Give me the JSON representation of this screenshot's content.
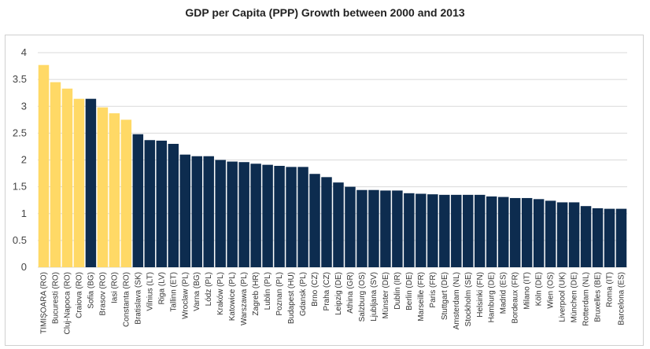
{
  "chart_data": {
    "type": "bar",
    "title": "GDP per Capita (PPP) Growth between 2000 and 2013",
    "xlabel": "",
    "ylabel": "",
    "ylim": [
      0,
      4
    ],
    "yticks": [
      0,
      0.5,
      1,
      1.5,
      2,
      2.5,
      3,
      3.5,
      4
    ],
    "grid": true,
    "colors": {
      "highlight": "#FFD966",
      "default": "#0D2C4F"
    },
    "categories": [
      "TIMIȘOARA (RO)",
      "Bucuresti (RO)",
      "Cluj-Napoca (RO)",
      "Craiova (RO)",
      "Sofia (BG)",
      "Brasov (RO)",
      "Iasi (RO)",
      "Constanta (RO)",
      "Bratislava (SK)",
      "Vilnius (LT)",
      "Riga (LV)",
      "Tallinn (ET)",
      "Wroclaw (PL)",
      "Varna (BG)",
      "Lódz (PL)",
      "Kraków (PL)",
      "Katowice (PL)",
      "Warszawa (PL)",
      "Zagreb (HR)",
      "Lublin (PL)",
      "Poznan (PL)",
      "Budapest (HU)",
      "Gdansk (PL)",
      "Brno (CZ)",
      "Praha (CZ)",
      "Leipzig (DE)",
      "Athina (GR)",
      "Salzburg (OS)",
      "Ljubljana (SV)",
      "Münster (DE)",
      "Dublin (IR)",
      "Berlin (DE)",
      "Marseille (FR)",
      "Paris (FR)",
      "Stuttgart (DE)",
      "Amsterdam (NL)",
      "Stockholm (SE)",
      "Helsinki (FN)",
      "Hamburg (DE)",
      "Madrid (ES)",
      "Bordeaux (FR)",
      "Milano (IT)",
      "Köln (DE)",
      "Wien (OS)",
      "Liverpool (UK)",
      "München (DE)",
      "Rotterdam (NL)",
      "Bruxelles (BE)",
      "Roma (IT)",
      "Barcelona (ES)"
    ],
    "values": [
      3.77,
      3.45,
      3.33,
      3.14,
      3.14,
      2.98,
      2.87,
      2.75,
      2.48,
      2.37,
      2.36,
      2.3,
      2.1,
      2.07,
      2.07,
      2.0,
      1.97,
      1.96,
      1.93,
      1.91,
      1.89,
      1.87,
      1.87,
      1.74,
      1.68,
      1.58,
      1.5,
      1.44,
      1.44,
      1.43,
      1.43,
      1.38,
      1.37,
      1.36,
      1.35,
      1.35,
      1.35,
      1.35,
      1.32,
      1.31,
      1.29,
      1.29,
      1.27,
      1.24,
      1.21,
      1.21,
      1.14,
      1.1,
      1.09,
      1.09
    ],
    "highlight": [
      true,
      true,
      true,
      true,
      false,
      true,
      true,
      true,
      false,
      false,
      false,
      false,
      false,
      false,
      false,
      false,
      false,
      false,
      false,
      false,
      false,
      false,
      false,
      false,
      false,
      false,
      false,
      false,
      false,
      false,
      false,
      false,
      false,
      false,
      false,
      false,
      false,
      false,
      false,
      false,
      false,
      false,
      false,
      false,
      false,
      false,
      false,
      false,
      false,
      false
    ]
  }
}
